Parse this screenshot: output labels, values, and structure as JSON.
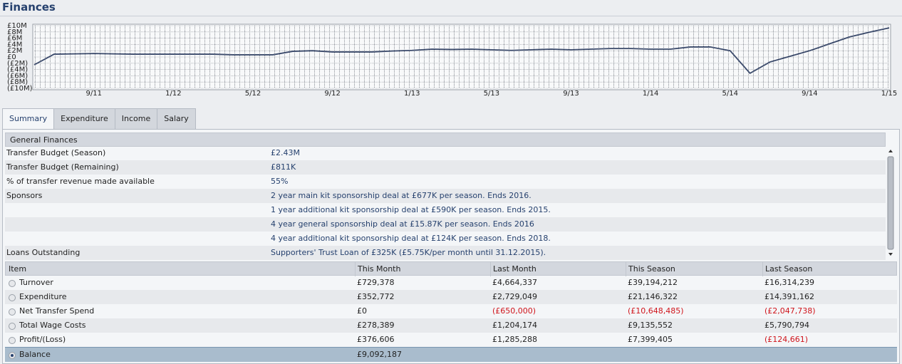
{
  "header": {
    "title": "Finances"
  },
  "chart_data": {
    "type": "line",
    "categories": [
      null,
      null,
      null,
      "9/11",
      null,
      null,
      null,
      "1/12",
      null,
      null,
      null,
      "5/12",
      null,
      null,
      null,
      "9/12",
      null,
      null,
      null,
      "1/13",
      null,
      null,
      null,
      "5/13",
      null,
      null,
      null,
      "9/13",
      null,
      null,
      null,
      "1/14",
      null,
      null,
      null,
      "5/14",
      null,
      null,
      null,
      "9/14",
      null,
      null,
      null,
      "1/15"
    ],
    "series": [
      {
        "color": "#3b4a6b",
        "values": [
          -2.5,
          0.9,
          1.0,
          1.1,
          1.0,
          0.9,
          0.9,
          0.9,
          0.9,
          0.9,
          0.7,
          0.7,
          0.7,
          1.8,
          2.0,
          1.6,
          1.6,
          1.6,
          1.9,
          2.1,
          2.5,
          2.4,
          2.5,
          2.3,
          2.1,
          2.3,
          2.5,
          2.3,
          2.5,
          2.7,
          2.7,
          2.5,
          2.5,
          3.2,
          3.2,
          2.0,
          -5.2,
          -1.6,
          0.2,
          2.0,
          4.2,
          6.4,
          7.9,
          9.3
        ]
      }
    ],
    "ylim": [
      -10,
      10
    ],
    "yticks": [
      {
        "value": 10,
        "label": "£10M"
      },
      {
        "value": 8,
        "label": "£8M"
      },
      {
        "value": 6,
        "label": "£6M"
      },
      {
        "value": 4,
        "label": "£4M"
      },
      {
        "value": 2,
        "label": "£2M"
      },
      {
        "value": 0,
        "label": "£0"
      },
      {
        "value": -2,
        "label": "(£2M)"
      },
      {
        "value": -4,
        "label": "(£4M)"
      },
      {
        "value": -6,
        "label": "(£6M)"
      },
      {
        "value": -8,
        "label": "(£8M)"
      },
      {
        "value": -10,
        "label": "(£10M)"
      }
    ],
    "grid": true
  },
  "tabs": [
    "Summary",
    "Expenditure",
    "Income",
    "Salary"
  ],
  "general_finances": {
    "title": "General Finances",
    "rows": [
      {
        "label": "Transfer Budget (Season)",
        "value": "£2.43M"
      },
      {
        "label": "Transfer Budget (Remaining)",
        "value": "£811K"
      },
      {
        "label": "% of transfer revenue made available",
        "value": "55%"
      },
      {
        "label": "Sponsors",
        "value": "2 year main kit sponsorship deal at £677K per season. Ends 2016."
      },
      {
        "value": "1 year additional kit sponsorship deal at £590K per season. Ends 2015."
      },
      {
        "value": "4 year general sponsorship deal at £15.87K per season. Ends 2016"
      },
      {
        "value": "4 year additional kit sponsorship deal at £124K per season. Ends 2018."
      },
      {
        "label": "Loans Outstanding",
        "value": "Supporters' Trust Loan of £325K (£5.75K/per month until 31.12.2015)."
      }
    ]
  },
  "table": {
    "columns": [
      "Item",
      "This Month",
      "Last Month",
      "This Season",
      "Last Season"
    ],
    "rows": [
      [
        "Turnover",
        "£729,378",
        "£4,664,337",
        "£39,194,212",
        "£16,314,239"
      ],
      [
        "Expenditure",
        "£352,772",
        "£2,729,049",
        "£21,146,322",
        "£14,391,162"
      ],
      [
        "Net Transfer Spend",
        "£0",
        "(£650,000)",
        "(£10,648,485)",
        "(£2,047,738)"
      ],
      [
        "Total Wage Costs",
        "£278,389",
        "£1,204,174",
        "£9,135,552",
        "£5,790,794"
      ],
      [
        "Profit/(Loss)",
        "£376,606",
        "£1,285,288",
        "£7,399,405",
        "(£124,661)"
      ],
      [
        "Balance",
        "£9,092,187"
      ]
    ]
  }
}
